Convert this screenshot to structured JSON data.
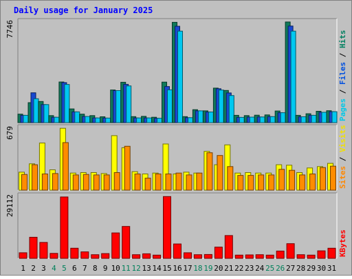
{
  "chart_data": {
    "type": "bar",
    "title": "Daily usage for January 2025",
    "days": [
      "1",
      "2",
      "3",
      "4",
      "5",
      "6",
      "7",
      "8",
      "9",
      "10",
      "11",
      "12",
      "13",
      "14",
      "15",
      "16",
      "17",
      "18",
      "19",
      "20",
      "21",
      "22",
      "23",
      "24",
      "25",
      "26",
      "27",
      "28",
      "29",
      "30",
      "31"
    ],
    "weekend_days": [
      "4",
      "5",
      "11",
      "12",
      "18",
      "19",
      "25",
      "26"
    ],
    "panels": [
      {
        "name": "hits-files-pages",
        "max_label": "7746",
        "ymax": 7746,
        "right_labels": [
          {
            "text": "Pages",
            "color": "#00c8e8"
          },
          {
            "text": " / ",
            "color": "#000000"
          },
          {
            "text": "Files",
            "color": "#0050e0"
          },
          {
            "text": " / ",
            "color": "#000000"
          },
          {
            "text": "Hits",
            "color": "#008060"
          }
        ],
        "series": [
          {
            "name": "Hits",
            "color": "#107a5a",
            "values": [
              650,
              1530,
              1620,
              540,
              3110,
              1050,
              650,
              540,
              450,
              2500,
              3090,
              460,
              480,
              410,
              3100,
              7670,
              460,
              990,
              900,
              2640,
              2460,
              560,
              540,
              570,
              590,
              890,
              7700,
              560,
              680,
              870,
              910
            ]
          },
          {
            "name": "Files",
            "color": "#1848d0",
            "values": [
              560,
              2280,
              1380,
              410,
              3060,
              820,
              470,
              360,
              350,
              2450,
              2930,
              360,
              360,
              330,
              2760,
              7370,
              380,
              900,
              810,
              2590,
              2270,
              400,
              420,
              430,
              460,
              760,
              7390,
              450,
              560,
              790,
              840
            ]
          },
          {
            "name": "Pages",
            "color": "#00c8f0",
            "values": [
              560,
              1830,
              1380,
              410,
              2920,
              820,
              470,
              360,
              350,
              2450,
              2810,
              360,
              360,
              330,
              2510,
              7000,
              380,
              900,
              810,
              2490,
              2070,
              400,
              420,
              430,
              460,
              760,
              7000,
              450,
              560,
              790,
              840
            ]
          }
        ]
      },
      {
        "name": "visits-sites",
        "max_label": "679",
        "ymax": 679,
        "right_labels": [
          {
            "text": "Sites",
            "color": "#ff8800"
          },
          {
            "text": " / ",
            "color": "#000000"
          },
          {
            "text": "Visits",
            "color": "#f0e000"
          }
        ],
        "series": [
          {
            "name": "Visits",
            "color": "#ffff00",
            "values": [
              195,
              285,
              510,
              220,
              670,
              185,
              190,
              190,
              180,
              590,
              460,
              200,
              175,
              185,
              500,
              175,
              195,
              185,
              420,
              275,
              490,
              185,
              190,
              185,
              185,
              275,
              270,
              190,
              240,
              255,
              290
            ]
          },
          {
            "name": "Sites",
            "color": "#ff8c00",
            "values": [
              170,
              275,
              175,
              180,
              515,
              165,
              170,
              165,
              165,
              190,
              475,
              175,
              130,
              175,
              175,
              185,
              165,
              185,
              405,
              375,
              255,
              160,
              160,
              165,
              165,
              225,
              215,
              165,
              175,
              245,
              260
            ]
          }
        ]
      },
      {
        "name": "kbytes",
        "max_label": "29112",
        "ymax": 29112,
        "right_labels": [
          {
            "text": "KBytes",
            "color": "#ff0000"
          }
        ],
        "series": [
          {
            "name": "KBytes",
            "color": "#ff0000",
            "values": [
              2600,
              9800,
              7400,
              2300,
              28500,
              4700,
              3000,
              1700,
              2200,
              11800,
              14800,
              1700,
              2100,
              1500,
              28700,
              6700,
              2600,
              1700,
              1800,
              5200,
              10600,
              1500,
              1600,
              1700,
              1500,
              3400,
              6800,
              1700,
              1500,
              3500,
              4700
            ]
          }
        ]
      }
    ]
  },
  "colors": {
    "background": "#c0c0c0",
    "plot_background": "#c0c0c0",
    "title": "#0000ff",
    "weekday_label": "#000000",
    "weekend_label": "#00805a",
    "border_dark": "#808080",
    "border_light": "#ffffff"
  }
}
